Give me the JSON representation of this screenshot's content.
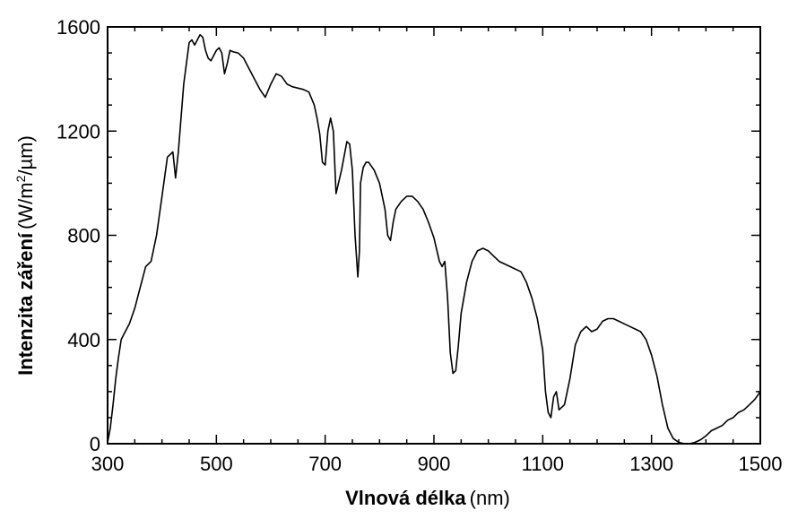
{
  "chart_data": {
    "type": "line",
    "title": "",
    "xlabel_main": "Vlnová délka",
    "xlabel_unit": "(nm)",
    "ylabel_main": "Intenzita záření",
    "ylabel_unit_pre": "(W/m",
    "ylabel_unit_sup": "2",
    "ylabel_unit_post": "/µm)",
    "xlim": [
      300,
      1500
    ],
    "ylim": [
      0,
      1600
    ],
    "x_ticks": [
      300,
      500,
      700,
      900,
      1100,
      1300,
      1500
    ],
    "y_ticks": [
      0,
      400,
      800,
      1200,
      1600
    ],
    "grid": false,
    "series": [
      {
        "x": [
          300,
          305,
          310,
          315,
          320,
          325,
          330,
          340,
          350,
          360,
          370,
          380,
          390,
          400,
          410,
          420,
          425,
          430,
          440,
          450,
          455,
          460,
          465,
          470,
          475,
          480,
          485,
          490,
          500,
          505,
          510,
          515,
          520,
          525,
          530,
          540,
          550,
          560,
          570,
          580,
          590,
          600,
          610,
          620,
          630,
          640,
          650,
          660,
          670,
          680,
          685,
          690,
          695,
          700,
          705,
          710,
          715,
          720,
          730,
          740,
          745,
          750,
          755,
          760,
          763,
          765,
          770,
          775,
          780,
          790,
          800,
          810,
          815,
          820,
          825,
          830,
          840,
          850,
          860,
          870,
          880,
          890,
          900,
          910,
          915,
          920,
          925,
          930,
          935,
          940,
          945,
          950,
          960,
          970,
          980,
          990,
          1000,
          1010,
          1020,
          1040,
          1060,
          1070,
          1080,
          1090,
          1100,
          1105,
          1110,
          1115,
          1120,
          1125,
          1130,
          1140,
          1150,
          1160,
          1170,
          1180,
          1190,
          1200,
          1210,
          1220,
          1230,
          1240,
          1250,
          1260,
          1270,
          1280,
          1290,
          1300,
          1310,
          1320,
          1330,
          1340,
          1350,
          1360,
          1370,
          1380,
          1390,
          1400,
          1410,
          1420,
          1430,
          1440,
          1450,
          1460,
          1470,
          1480,
          1490,
          1500
        ],
        "y": [
          5,
          60,
          150,
          250,
          330,
          400,
          420,
          460,
          520,
          600,
          680,
          700,
          800,
          950,
          1100,
          1120,
          1020,
          1120,
          1380,
          1540,
          1550,
          1530,
          1550,
          1570,
          1560,
          1510,
          1480,
          1470,
          1510,
          1520,
          1500,
          1420,
          1460,
          1510,
          1505,
          1500,
          1480,
          1440,
          1400,
          1360,
          1330,
          1380,
          1420,
          1410,
          1380,
          1370,
          1365,
          1360,
          1350,
          1300,
          1250,
          1190,
          1080,
          1070,
          1200,
          1250,
          1200,
          960,
          1050,
          1160,
          1150,
          1050,
          800,
          640,
          740,
          1000,
          1060,
          1080,
          1080,
          1050,
          1000,
          900,
          800,
          780,
          850,
          900,
          930,
          950,
          950,
          930,
          900,
          850,
          790,
          700,
          680,
          700,
          560,
          350,
          270,
          280,
          380,
          500,
          620,
          700,
          740,
          750,
          740,
          720,
          700,
          680,
          660,
          620,
          560,
          480,
          360,
          200,
          120,
          100,
          180,
          200,
          130,
          150,
          250,
          380,
          430,
          450,
          430,
          440,
          470,
          480,
          480,
          470,
          460,
          450,
          440,
          430,
          400,
          340,
          260,
          150,
          60,
          20,
          5,
          0,
          0,
          5,
          15,
          30,
          50,
          60,
          70,
          90,
          100,
          120,
          130,
          150,
          170,
          200
        ]
      }
    ]
  }
}
